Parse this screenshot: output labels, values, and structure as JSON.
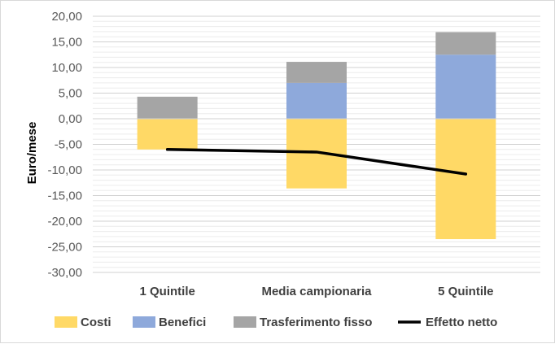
{
  "chart_data": {
    "type": "bar",
    "stacked": true,
    "categories": [
      "1 Quintile",
      "Media campionaria",
      "5 Quintile"
    ],
    "ylabel": "Euro/mese",
    "ylim": [
      -30,
      20
    ],
    "ytick_step": 5,
    "y_ticks": [
      "-30,00",
      "-25,00",
      "-20,00",
      "-15,00",
      "-10,00",
      "-5,00",
      "0,00",
      "5,00",
      "10,00",
      "15,00",
      "20,00"
    ],
    "grid": true,
    "legend_position": "bottom",
    "series": [
      {
        "name": "Costi",
        "kind": "bar",
        "color": "#FFD966",
        "values": [
          -6.0,
          -13.6,
          -23.5
        ]
      },
      {
        "name": "Benefici",
        "kind": "bar",
        "color": "#8EA9DB",
        "values": [
          0.0,
          7.0,
          12.5
        ]
      },
      {
        "name": "Trasferimento fisso",
        "kind": "bar",
        "color": "#A5A5A5",
        "values": [
          4.3,
          4.1,
          4.4
        ]
      },
      {
        "name": "Effetto netto",
        "kind": "line",
        "color": "#000000",
        "values": [
          -6.0,
          -6.5,
          -10.8
        ]
      }
    ]
  }
}
